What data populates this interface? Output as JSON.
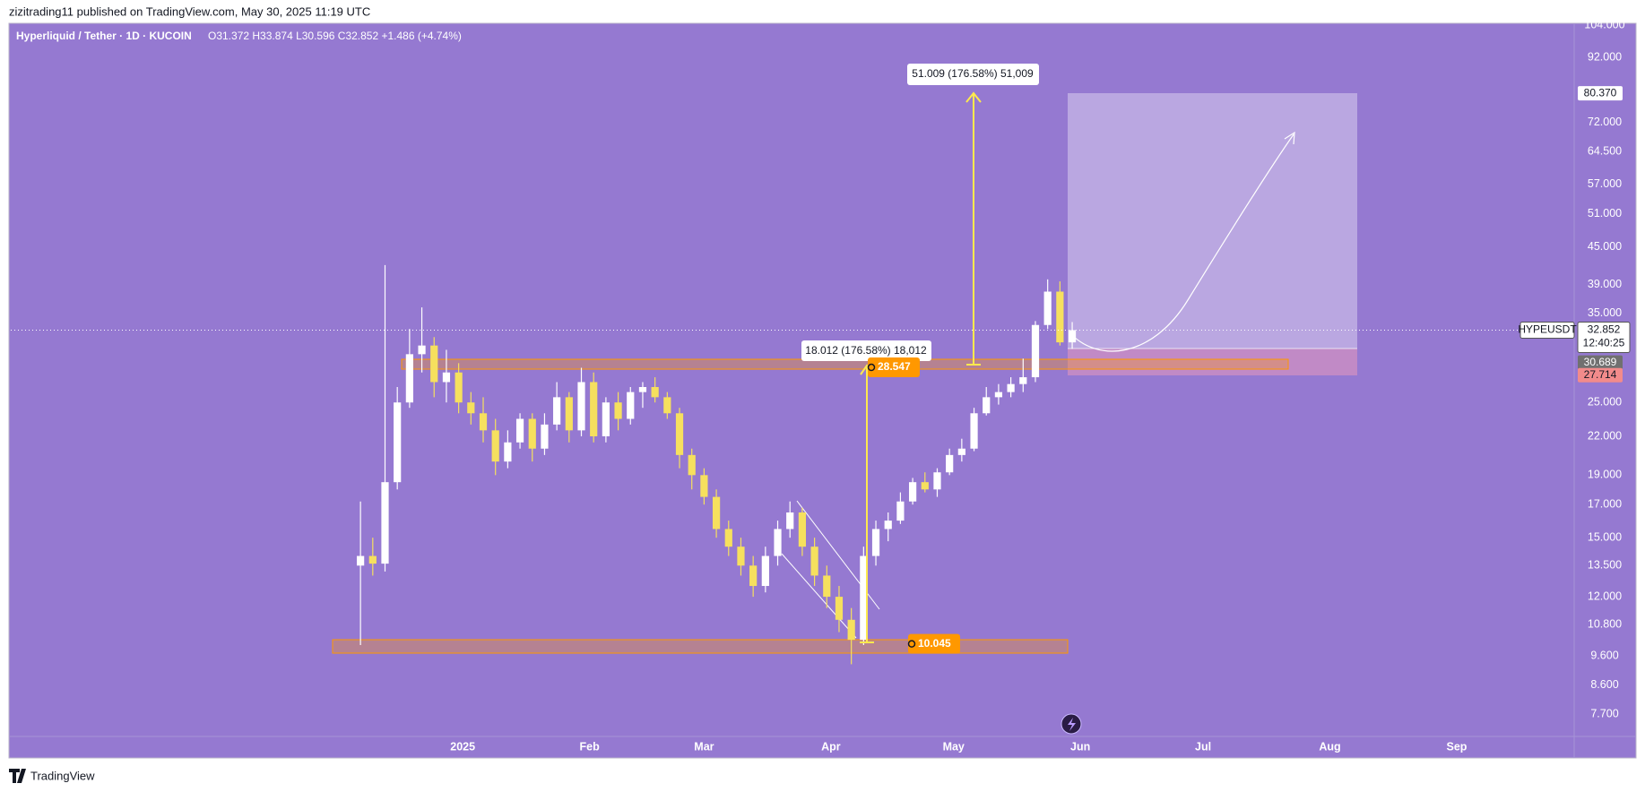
{
  "publisher": "zizitrading11 published on TradingView.com, May 30, 2025 11:19 UTC",
  "footer": "TradingView",
  "chart_data": {
    "type": "candlestick",
    "title": "Hyperliquid / Tether · 1D · KUCOIN",
    "ohlc_text": "O31.372 H33.874 L30.596 C32.852 +1.486 (+4.74%)",
    "symbol": "HYPEUSDT",
    "countdown": "12:40:25",
    "log_scale": true,
    "grid": false,
    "up_color": "#ffffff",
    "down_color": "#f6e05e",
    "xlim": [
      -110.5,
      271.5
    ],
    "xticks": [
      {
        "value": 0,
        "label": "2025"
      },
      {
        "value": 31,
        "label": "Feb"
      },
      {
        "value": 59,
        "label": "Mar"
      },
      {
        "value": 90,
        "label": "Apr"
      },
      {
        "value": 120,
        "label": "May"
      },
      {
        "value": 151,
        "label": "Jun"
      },
      {
        "value": 181,
        "label": "Jul"
      },
      {
        "value": 212,
        "label": "Aug"
      },
      {
        "value": 243,
        "label": "Sep"
      }
    ],
    "ylim": [
      7.08,
      104
    ],
    "yticks": [
      {
        "value": 104,
        "label": "104.000"
      },
      {
        "value": 92,
        "label": "92.000"
      },
      {
        "value": 72,
        "label": "72.000"
      },
      {
        "value": 64.5,
        "label": "64.500"
      },
      {
        "value": 57,
        "label": "57.000"
      },
      {
        "value": 51,
        "label": "51.000"
      },
      {
        "value": 45,
        "label": "45.000"
      },
      {
        "value": 39,
        "label": "39.000"
      },
      {
        "value": 35,
        "label": "35.000"
      },
      {
        "value": 25,
        "label": "25.000"
      },
      {
        "value": 22,
        "label": "22.000"
      },
      {
        "value": 19,
        "label": "19.000"
      },
      {
        "value": 17,
        "label": "17.000"
      },
      {
        "value": 15,
        "label": "15.000"
      },
      {
        "value": 13.5,
        "label": "13.500"
      },
      {
        "value": 12,
        "label": "12.000"
      },
      {
        "value": 10.8,
        "label": "10.800"
      },
      {
        "value": 9.6,
        "label": "9.600"
      },
      {
        "value": 8.6,
        "label": "8.600"
      },
      {
        "value": 7.7,
        "label": "7.700"
      }
    ],
    "last_price": {
      "value": 32.852,
      "label": "32.852"
    },
    "price_labels": [
      {
        "value": 80.37,
        "label": "80.370"
      },
      {
        "value": 30.689,
        "label": "30.689"
      },
      {
        "value": 27.714,
        "label": "27.714"
      }
    ],
    "zone_labels": [
      {
        "value": 28.547,
        "label": "28.547"
      },
      {
        "value": 10.045,
        "label": "10.045"
      }
    ],
    "measure_labels": [
      "18.012 (176.58%) 18,012",
      "51.009 (176.58%) 51,009"
    ],
    "x": [
      -25,
      -22,
      -19,
      -16,
      -13,
      -10,
      -7,
      -4,
      -1,
      2,
      5,
      8,
      11,
      14,
      17,
      20,
      23,
      26,
      29,
      32,
      35,
      38,
      41,
      44,
      47,
      50,
      53,
      56,
      59,
      62,
      65,
      68,
      71,
      74,
      77,
      80,
      83,
      86,
      89,
      92,
      95,
      98,
      101,
      104,
      107,
      110,
      113,
      116,
      119,
      122,
      125,
      128,
      131,
      134,
      137,
      140,
      143,
      146,
      149
    ],
    "open": [
      13.5,
      14.0,
      13.6,
      18.5,
      25.0,
      30.0,
      31.0,
      27.0,
      28.0,
      25.0,
      24.0,
      22.5,
      20.0,
      21.5,
      23.5,
      21.0,
      23.0,
      25.5,
      22.5,
      27.0,
      22.0,
      25.0,
      23.5,
      26.0,
      26.5,
      25.5,
      24.0,
      20.5,
      19.0,
      17.5,
      15.5,
      14.5,
      13.5,
      12.5,
      14.0,
      15.5,
      16.5,
      14.5,
      13.0,
      12.0,
      11.0,
      10.2,
      14.0,
      15.5,
      16.0,
      17.2,
      18.5,
      18.0,
      19.2,
      20.5,
      21.0,
      24.0,
      25.5,
      26.0,
      26.8,
      27.5,
      33.5,
      38.0,
      31.372
    ],
    "high": [
      17.2,
      15.0,
      42.0,
      26.5,
      33.0,
      35.8,
      32.0,
      30.5,
      29.0,
      26.0,
      25.5,
      23.5,
      22.5,
      24.0,
      24.0,
      24.0,
      27.0,
      26.0,
      28.5,
      28.0,
      25.5,
      26.0,
      26.5,
      27.0,
      27.5,
      26.0,
      24.5,
      21.0,
      19.5,
      18.0,
      16.0,
      15.0,
      14.0,
      14.5,
      16.0,
      17.2,
      16.8,
      15.0,
      13.5,
      12.5,
      11.5,
      14.5,
      16.0,
      16.5,
      17.8,
      18.8,
      19.2,
      19.5,
      21.0,
      21.8,
      24.5,
      26.5,
      26.8,
      27.5,
      29.5,
      34.0,
      39.8,
      39.5,
      33.874
    ],
    "low": [
      10.0,
      13.0,
      13.2,
      18.0,
      24.5,
      28.0,
      25.5,
      25.0,
      24.0,
      23.0,
      21.5,
      19.0,
      19.5,
      21.0,
      20.0,
      20.5,
      22.5,
      21.5,
      22.0,
      21.5,
      21.5,
      22.5,
      23.0,
      24.5,
      25.0,
      23.5,
      19.5,
      18.0,
      17.0,
      15.0,
      14.0,
      13.0,
      12.0,
      12.2,
      13.5,
      15.0,
      14.0,
      12.5,
      11.5,
      10.5,
      9.3,
      10.0,
      13.5,
      14.8,
      15.8,
      17.0,
      17.8,
      17.5,
      19.0,
      20.0,
      20.8,
      23.8,
      24.8,
      25.5,
      26.0,
      27.0,
      33.0,
      31.0,
      30.596
    ],
    "close": [
      14.0,
      13.6,
      18.5,
      25.0,
      30.0,
      31.0,
      27.0,
      28.0,
      25.0,
      24.0,
      22.5,
      20.0,
      21.5,
      23.5,
      21.0,
      23.0,
      25.5,
      22.5,
      27.0,
      22.0,
      25.0,
      23.5,
      26.0,
      26.5,
      25.5,
      24.0,
      20.5,
      19.0,
      17.5,
      15.5,
      14.5,
      13.5,
      12.5,
      14.0,
      15.5,
      16.5,
      14.5,
      13.0,
      12.0,
      11.0,
      10.2,
      14.0,
      15.5,
      16.0,
      17.2,
      18.5,
      18.0,
      19.2,
      20.5,
      21.0,
      24.0,
      25.5,
      26.0,
      26.8,
      27.5,
      33.5,
      38.0,
      31.372,
      32.852
    ]
  }
}
